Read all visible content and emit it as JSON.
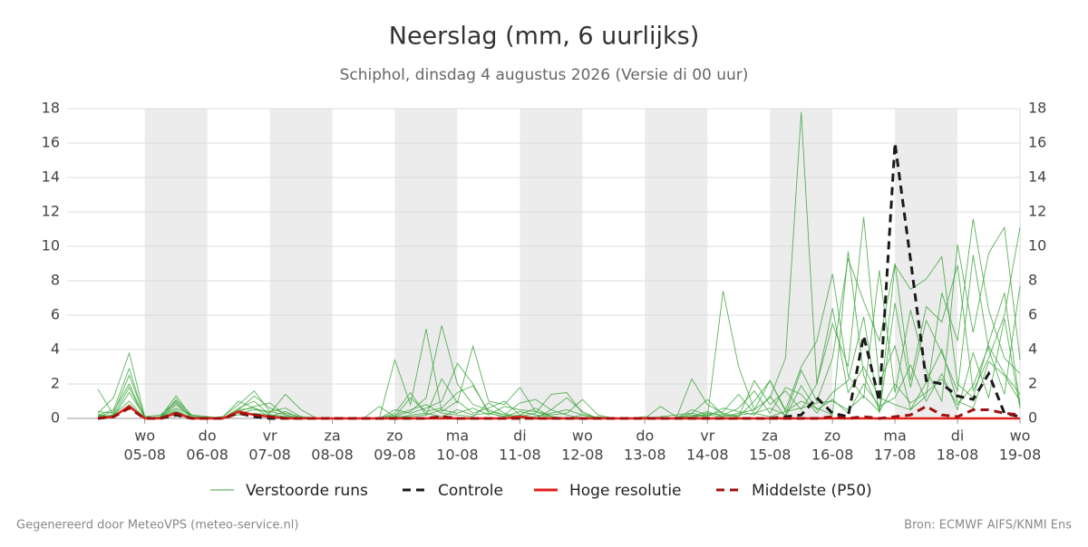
{
  "chart_data": {
    "type": "line",
    "title": "Neerslag (mm, 6 uurlijks)",
    "subtitle": "Schiphol, dinsdag  4 augustus 2026 (Versie di 00 uur)",
    "footer_left": "Gegenereerd door MeteoVPS (meteo-service.nl)",
    "footer_right": "Bron: ECMWF AIFS/KNMI Ens",
    "categories": [
      null,
      null,
      null,
      "05-08",
      null,
      null,
      null,
      "06-08",
      null,
      null,
      null,
      "07-08",
      null,
      null,
      null,
      "08-08",
      null,
      null,
      null,
      "09-08",
      null,
      null,
      null,
      "10-08",
      null,
      null,
      null,
      "11-08",
      null,
      null,
      null,
      "12-08",
      null,
      null,
      null,
      "13-08",
      null,
      null,
      null,
      "14-08",
      null,
      null,
      null,
      "15-08",
      null,
      null,
      null,
      "16-08",
      null,
      null,
      null,
      "17-08",
      null,
      null,
      null,
      "18-08",
      null,
      null,
      null,
      "19-08"
    ],
    "weekdays": [
      null,
      null,
      null,
      "wo",
      null,
      null,
      null,
      "do",
      null,
      null,
      null,
      "vr",
      null,
      null,
      null,
      "za",
      null,
      null,
      null,
      "zo",
      null,
      null,
      null,
      "ma",
      null,
      null,
      null,
      "di",
      null,
      null,
      null,
      "wo",
      null,
      null,
      null,
      "do",
      null,
      null,
      null,
      "vr",
      null,
      null,
      null,
      "za",
      null,
      null,
      null,
      "zo",
      null,
      null,
      null,
      "ma",
      null,
      null,
      null,
      "di",
      null,
      null,
      null,
      "wo"
    ],
    "ylim": [
      0,
      18
    ],
    "yticks": [
      0,
      2,
      4,
      6,
      8,
      10,
      12,
      14,
      16,
      18
    ],
    "grid": true,
    "series": [
      {
        "name": "Verstoorde runs",
        "color": "#3da63d",
        "runs": [
          [
            0.3,
            1.2,
            3.8,
            0.1,
            0.2,
            1.0,
            0.1,
            0,
            0.1,
            0.8,
            1.6,
            0.4,
            0.2,
            0,
            0,
            0,
            0,
            0,
            0,
            0.2,
            0.5,
            0.8,
            0.3,
            0.2,
            0.1,
            0.9,
            0.3,
            0,
            0.1,
            0.3,
            0.5,
            0.2,
            0,
            0,
            0,
            0,
            0,
            0,
            0.1,
            0.2,
            0.1,
            0.3,
            0.5,
            1.2,
            3.5,
            17.8,
            2.0,
            6.4,
            1.5,
            3.0,
            1.2,
            0.8,
            0.5,
            2.1,
            4.0,
            1.0,
            0.6,
            3.3,
            2.5,
            1.0
          ],
          [
            0.2,
            0.5,
            2.9,
            0,
            0.1,
            1.3,
            0.1,
            0,
            0.1,
            1.0,
            0.6,
            0.3,
            1.4,
            0.5,
            0,
            0,
            0,
            0,
            0,
            0.1,
            0.4,
            1.2,
            5.4,
            2.0,
            0.8,
            0.5,
            0.2,
            0.1,
            0.3,
            1.4,
            1.5,
            0.3,
            0,
            0,
            0,
            0,
            0.1,
            0.2,
            0.3,
            0.1,
            7.4,
            3.0,
            0.5,
            2.2,
            0.4,
            1.0,
            0.6,
            0.2,
            9.7,
            2.5,
            0.5,
            8.9,
            7.5,
            8.1,
            9.4,
            2.0,
            1.2,
            4.4,
            7.3,
            0.8
          ],
          [
            0.4,
            0.3,
            2.5,
            0.1,
            0,
            1.1,
            0.2,
            0,
            0,
            0.6,
            1.0,
            0.2,
            0.1,
            0,
            0,
            0,
            0,
            0,
            0,
            3.4,
            0.8,
            5.2,
            0.4,
            1.0,
            0.3,
            0.6,
            1.0,
            0.2,
            0,
            0.5,
            1.2,
            0.4,
            0,
            0,
            0,
            0,
            0,
            0,
            2.3,
            0.8,
            0.3,
            0.1,
            2.2,
            0.8,
            1.6,
            0.5,
            2.0,
            5.5,
            3.0,
            11.7,
            2.1,
            4.2,
            0.5,
            1.3,
            7.3,
            4.5,
            11.6,
            6.3,
            3.5,
            2.6
          ],
          [
            0.1,
            0.4,
            2.0,
            0,
            0.1,
            0.9,
            0,
            0.1,
            0,
            0.5,
            1.3,
            0.6,
            0.3,
            0.1,
            0,
            0,
            0,
            0,
            0,
            0.3,
            1.5,
            0.2,
            2.3,
            0.9,
            4.2,
            1.0,
            0.8,
            1.8,
            0.4,
            0.2,
            0.3,
            1.1,
            0.2,
            0,
            0,
            0,
            0,
            0,
            0.3,
            1.1,
            0.2,
            0.1,
            1.0,
            2.2,
            0.5,
            3.0,
            4.5,
            8.4,
            2.5,
            1.2,
            8.6,
            1.5,
            6.3,
            2.8,
            1.0,
            10.1,
            5.0,
            9.6,
            11.1,
            3.4
          ],
          [
            0.2,
            0.1,
            1.5,
            0.1,
            0,
            0.8,
            0.1,
            0,
            0,
            0.4,
            0.7,
            0.9,
            0.2,
            0,
            0,
            0,
            0,
            0,
            0,
            0.5,
            0.3,
            0.6,
            1.0,
            3.2,
            2.0,
            0.3,
            0.1,
            0.2,
            0.6,
            0.1,
            0,
            0.2,
            0,
            0,
            0,
            0.1,
            0,
            0,
            0.5,
            0.2,
            0.4,
            1.4,
            0.3,
            0.6,
            0.2,
            2.8,
            1.0,
            3.5,
            9.3,
            6.8,
            4.5,
            9.0,
            2.2,
            6.5,
            5.6,
            8.9,
            1.6,
            3.5,
            6.0,
            11.1
          ],
          [
            0.1,
            0.2,
            1.0,
            0,
            0.1,
            0.6,
            0.2,
            0.1,
            0,
            0.3,
            0.5,
            0.4,
            0.6,
            0.1,
            0,
            0,
            0,
            0,
            0,
            0.1,
            1.2,
            0.4,
            0.6,
            1.5,
            1.9,
            0.4,
            0.2,
            0.9,
            1.1,
            0.5,
            0.2,
            0,
            0.1,
            0,
            0,
            0,
            0.7,
            0.1,
            0,
            0.3,
            0.2,
            0.6,
            1.6,
            0.3,
            1.8,
            1.4,
            0.3,
            1.5,
            2.2,
            5.9,
            0.3,
            6.7,
            1.8,
            5.7,
            3.8,
            1.6,
            9.5,
            4.0,
            1.4,
            7.7
          ],
          [
            0.2,
            0.1,
            0.8,
            0,
            0,
            0.5,
            0,
            0,
            0.1,
            0.2,
            0.3,
            0.2,
            0.1,
            0,
            0,
            0,
            0,
            0,
            0,
            0,
            0.2,
            0.3,
            0.1,
            0.5,
            0.2,
            0.3,
            0.1,
            0.4,
            0.2,
            0.1,
            0,
            0,
            0,
            0,
            0,
            0,
            0,
            0,
            0.1,
            0.4,
            0.1,
            0.2,
            0.3,
            0.1,
            0.4,
            0.6,
            0.9,
            1.0,
            0.5,
            1.3,
            0.4,
            2.0,
            0.9,
            1.5,
            2.3,
            0.8,
            1.9,
            4.2,
            2.6,
            1.4
          ],
          [
            1.7,
            0.2,
            1.8,
            0,
            0.1,
            0.4,
            0,
            0,
            0,
            0.5,
            0.6,
            0.1,
            0.4,
            0,
            0,
            0,
            0,
            0,
            0.7,
            0.1,
            0.1,
            0.2,
            0.5,
            0.3,
            0.6,
            0.2,
            0.7,
            0.5,
            0.4,
            0.1,
            0,
            0,
            0,
            0,
            0,
            0,
            0,
            0,
            0.2,
            0.1,
            0.6,
            0.4,
            0.2,
            1.3,
            0.1,
            1.9,
            0.5,
            1.1,
            0.3,
            2.0,
            0.7,
            1.2,
            3.1,
            1.0,
            2.6,
            0.5,
            3.8,
            1.2,
            5.8,
            0.6
          ]
        ]
      },
      {
        "name": "Controle",
        "color": "#1a1a1a",
        "dash": true,
        "values": [
          0,
          0.1,
          0.6,
          0,
          0,
          0.2,
          0,
          0,
          0,
          0.3,
          0.1,
          0,
          0,
          0,
          0,
          0,
          0,
          0,
          0,
          0,
          0,
          0,
          0.1,
          0,
          0,
          0,
          0,
          0,
          0,
          0,
          0,
          0,
          0,
          0,
          0,
          0,
          0,
          0,
          0,
          0,
          0,
          0,
          0,
          0,
          0.1,
          0.2,
          1.2,
          0.3,
          0.1,
          4.8,
          1.0,
          16.0,
          9.2,
          2.2,
          2.0,
          1.3,
          1.1,
          2.6,
          0.3,
          0.1
        ]
      },
      {
        "name": "Hoge resolutie",
        "color": "#e0201b",
        "values": [
          0,
          0.1,
          0.7,
          0,
          0,
          0.3,
          0,
          0,
          0,
          0.4,
          0.2,
          0.1,
          0,
          0,
          0,
          0,
          0,
          0,
          0,
          0,
          0,
          0,
          0,
          0,
          0,
          0,
          0,
          0.1,
          0,
          0,
          0,
          0,
          0,
          0,
          0,
          0,
          0,
          0,
          0,
          0,
          0,
          0,
          0,
          0,
          0,
          0,
          0,
          0,
          0,
          0,
          0,
          0,
          0,
          0,
          0,
          0,
          0,
          0,
          0,
          0
        ]
      },
      {
        "name": "Middelste (P50)",
        "color": "#a01010",
        "dash": true,
        "values": [
          0,
          0.1,
          0.6,
          0,
          0,
          0.3,
          0,
          0,
          0,
          0.3,
          0.2,
          0.1,
          0,
          0,
          0,
          0,
          0,
          0,
          0,
          0,
          0,
          0,
          0.1,
          0,
          0,
          0,
          0,
          0,
          0,
          0,
          0,
          0,
          0,
          0,
          0,
          0,
          0,
          0,
          0,
          0,
          0,
          0,
          0,
          0,
          0,
          0,
          0,
          0.1,
          0,
          0.1,
          0,
          0.1,
          0.2,
          0.7,
          0.2,
          0.1,
          0.5,
          0.5,
          0.3,
          0.2
        ]
      }
    ]
  }
}
